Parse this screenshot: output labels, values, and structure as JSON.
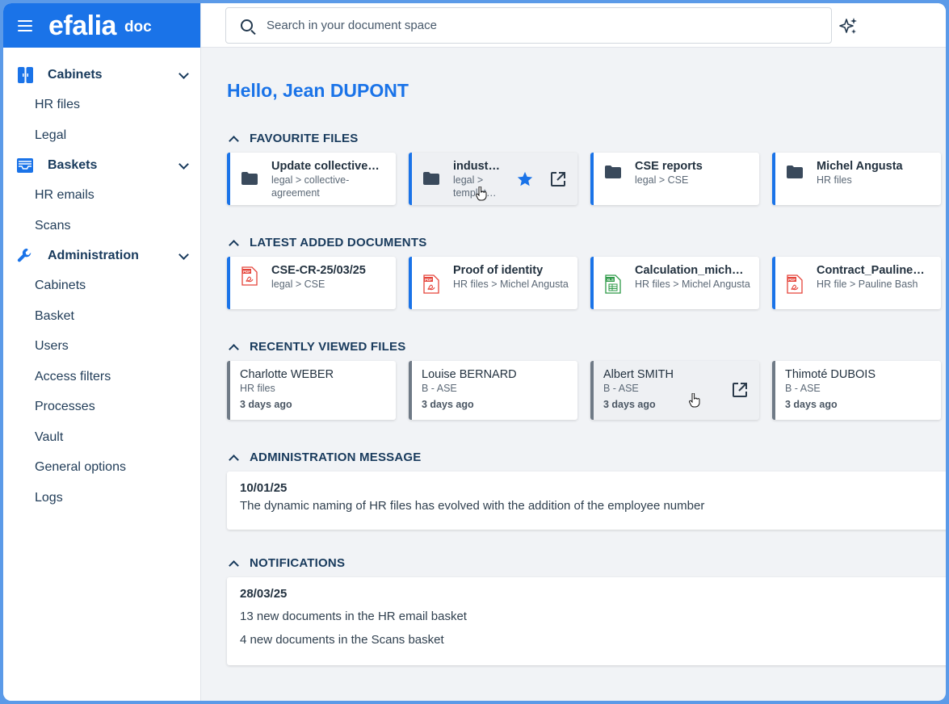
{
  "brand": {
    "logo": "efalia",
    "product": "doc"
  },
  "search": {
    "placeholder": "Search in your document space"
  },
  "sidebar": {
    "sections": [
      {
        "label": "Cabinets",
        "icon": "cabinet-icon",
        "items": [
          "HR files",
          "Legal"
        ]
      },
      {
        "label": "Baskets",
        "icon": "inbox-tray-icon",
        "items": [
          "HR emails",
          "Scans"
        ]
      },
      {
        "label": "Administration",
        "icon": "wrench-icon",
        "items": [
          "Cabinets",
          "Basket",
          "Users",
          "Access filters",
          "Processes",
          "Vault",
          "General options",
          "Logs"
        ]
      }
    ]
  },
  "greeting": "Hello, Jean DUPONT",
  "favourite_files": {
    "title": "FAVOURITE FILES",
    "cards": [
      {
        "title": "Update collective…",
        "sub": "legal > collective-agreement",
        "icon": "folder-icon"
      },
      {
        "title": "indust…",
        "sub": "legal > templat…",
        "icon": "folder-icon"
      },
      {
        "title": "CSE reports",
        "sub": "legal > CSE",
        "icon": "folder-icon"
      },
      {
        "title": "Michel Angusta",
        "sub": "HR files",
        "icon": "folder-icon"
      }
    ]
  },
  "latest_documents": {
    "title": "LATEST ADDED DOCUMENTS",
    "cards": [
      {
        "title": "CSE-CR-25/03/25",
        "sub": "legal > CSE",
        "icon": "pdf-file-icon"
      },
      {
        "title": "Proof of identity",
        "sub": "HR files > Michel Angusta",
        "icon": "pdf-file-icon"
      },
      {
        "title": "Calculation_mich…",
        "sub": "HR files > Michel Angusta",
        "icon": "xls-file-icon"
      },
      {
        "title": "Contract_Pauline…",
        "sub": "HR file > Pauline Bash",
        "icon": "pdf-file-icon"
      }
    ]
  },
  "recently_viewed": {
    "title": "RECENTLY VIEWED FILES",
    "cards": [
      {
        "title": "Charlotte WEBER",
        "sub": "HR files",
        "date": "3 days ago"
      },
      {
        "title": "Louise BERNARD",
        "sub": "B - ASE",
        "date": "3 days ago"
      },
      {
        "title": "Albert SMITH",
        "sub": "B - ASE",
        "date": "3 days ago"
      },
      {
        "title": "Thimoté DUBOIS",
        "sub": "B - ASE",
        "date": "3 days ago"
      }
    ]
  },
  "admin_message": {
    "title": "ADMINISTRATION MESSAGE",
    "date": "10/01/25",
    "text": "The dynamic naming of HR files has evolved with the addition of the employee number"
  },
  "notifications": {
    "title": "NOTIFICATIONS",
    "date": "28/03/25",
    "lines": [
      "13 new documents in the HR email basket",
      "4 new documents in the Scans basket"
    ]
  },
  "colors": {
    "accent": "#1a73e8",
    "heading": "#183a5c",
    "pdf": "#e5443a",
    "xls": "#2e9a48"
  }
}
